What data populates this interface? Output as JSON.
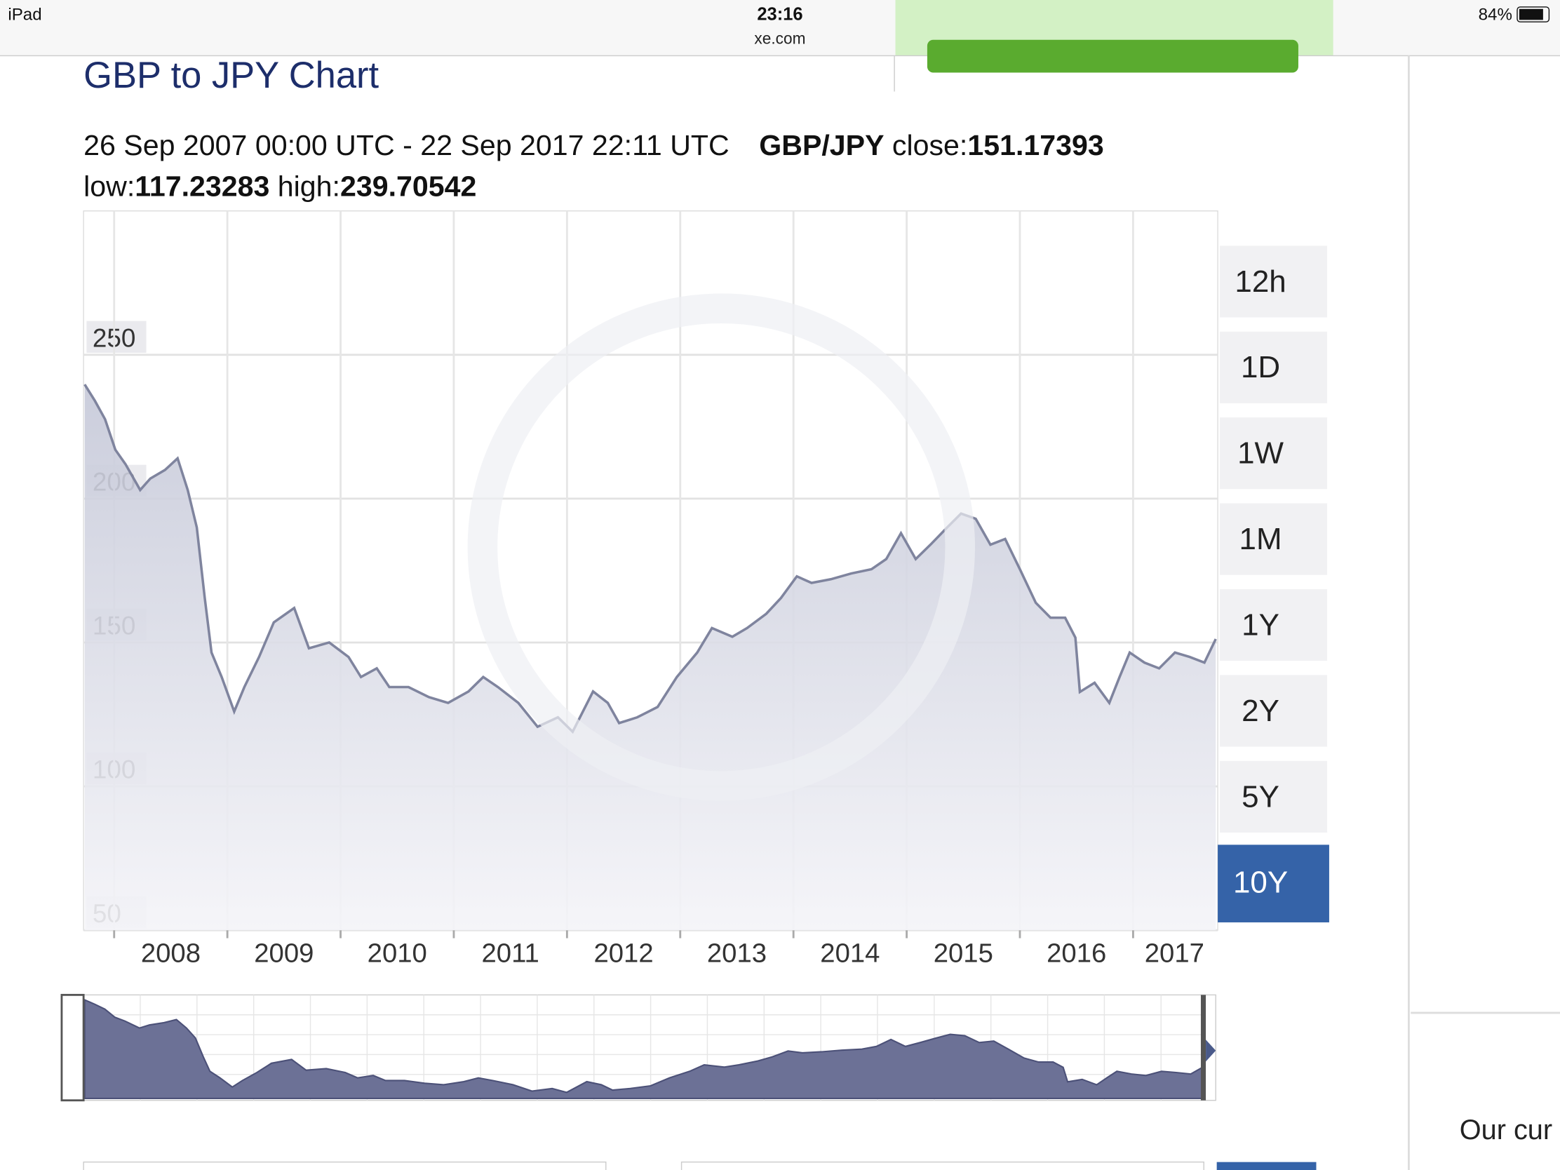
{
  "status_bar": {
    "device": "iPad",
    "time": "23:16",
    "site": "xe.com",
    "battery": "84%"
  },
  "header": {
    "title": "GBP to JPY Chart",
    "range": "26 Sep 2007 00:00 UTC - 22 Sep 2017 22:11 UTC",
    "pair": "GBP/JPY",
    "close_label": "close:",
    "close": "151.17393",
    "low_label": "low:",
    "low": "117.23283",
    "high_label": "high:",
    "high": "239.70542"
  },
  "chart_data": {
    "type": "area",
    "color": "#7f849e",
    "x": [
      2007.74,
      2007.83,
      2007.92,
      2008.01,
      2008.1,
      2008.23,
      2008.32,
      2008.45,
      2008.56,
      2008.65,
      2008.73,
      2008.8,
      2008.86,
      2008.95,
      2009.06,
      2009.15,
      2009.28,
      2009.41,
      2009.59,
      2009.72,
      2009.9,
      2010.07,
      2010.18,
      2010.32,
      2010.43,
      2010.6,
      2010.78,
      2010.95,
      2011.13,
      2011.26,
      2011.39,
      2011.57,
      2011.74,
      2011.92,
      2012.05,
      2012.23,
      2012.36,
      2012.46,
      2012.62,
      2012.8,
      2012.97,
      2013.15,
      2013.28,
      2013.46,
      2013.59,
      2013.76,
      2013.89,
      2014.03,
      2014.16,
      2014.33,
      2014.51,
      2014.69,
      2014.82,
      2014.95,
      2015.08,
      2015.21,
      2015.35,
      2015.48,
      2015.61,
      2015.74,
      2015.87,
      2016.0,
      2016.14,
      2016.27,
      2016.4,
      2016.49,
      2016.53,
      2016.66,
      2016.79,
      2016.88,
      2016.97,
      2017.1,
      2017.23,
      2017.37,
      2017.5,
      2017.63,
      2017.73
    ],
    "values": [
      239.7,
      234,
      227.6,
      217,
      212,
      203,
      207,
      210,
      214,
      203,
      190,
      165.5,
      146.5,
      138,
      126,
      134.5,
      145,
      157,
      162,
      148,
      150,
      145,
      138,
      141,
      134.5,
      134.5,
      131,
      129,
      133,
      138,
      134.5,
      129,
      120.7,
      124,
      119,
      133,
      129,
      122,
      124,
      127.6,
      138,
      146.5,
      155,
      152,
      155,
      160,
      165.5,
      173,
      170.7,
      172,
      174,
      175.5,
      179,
      188,
      179,
      184,
      189.7,
      194.8,
      193,
      184,
      186,
      175.5,
      163.8,
      158.6,
      158.6,
      151.7,
      132.8,
      136,
      129,
      138,
      146.5,
      143,
      141,
      146.5,
      145,
      143,
      151.2
    ],
    "xlim": [
      2007.73,
      2017.73
    ],
    "xticks": [
      2008,
      2009,
      2010,
      2011,
      2012,
      2013,
      2014,
      2015,
      2016,
      2017
    ],
    "ylim": [
      50,
      300
    ],
    "yticks": [
      50,
      100,
      150,
      200,
      250
    ],
    "grid": true
  },
  "range_buttons": {
    "options": [
      "12h",
      "1D",
      "1W",
      "1M",
      "1Y",
      "2Y",
      "5Y",
      "10Y"
    ],
    "selected_index": 7
  },
  "sidebar_text": "Our cur"
}
